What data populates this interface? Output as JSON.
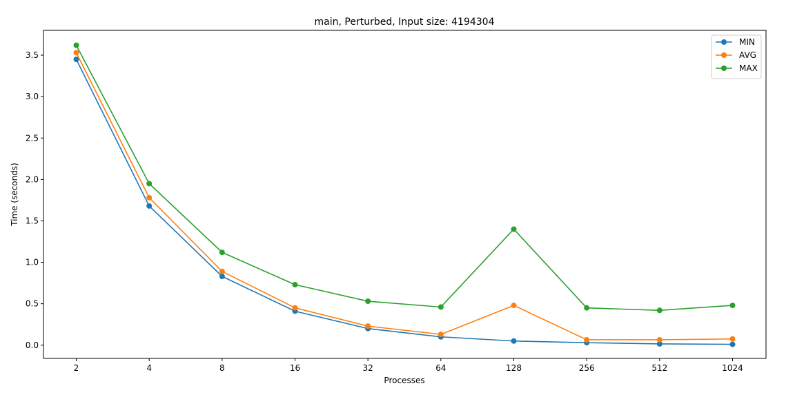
{
  "chart_data": {
    "type": "line",
    "title": "main, Perturbed, Input size: 4194304",
    "xlabel": "Processes",
    "ylabel": "Time (seconds)",
    "categories": [
      "2",
      "4",
      "8",
      "16",
      "32",
      "64",
      "128",
      "256",
      "512",
      "1024"
    ],
    "ylim": [
      -0.16,
      3.8
    ],
    "yticks": [
      "0.0",
      "0.5",
      "1.0",
      "1.5",
      "2.0",
      "2.5",
      "3.0",
      "3.5"
    ],
    "legend_position": "top-right",
    "grid": false,
    "series": [
      {
        "name": "MIN",
        "color": "#1f77b4",
        "values": [
          3.45,
          1.68,
          0.83,
          0.41,
          0.2,
          0.1,
          0.05,
          0.03,
          0.015,
          0.01
        ]
      },
      {
        "name": "AVG",
        "color": "#ff7f0e",
        "values": [
          3.53,
          1.78,
          0.89,
          0.45,
          0.23,
          0.13,
          0.48,
          0.065,
          0.065,
          0.075
        ]
      },
      {
        "name": "MAX",
        "color": "#2ca02c",
        "values": [
          3.62,
          1.95,
          1.12,
          0.73,
          0.53,
          0.46,
          1.4,
          0.45,
          0.42,
          0.48
        ]
      }
    ]
  }
}
